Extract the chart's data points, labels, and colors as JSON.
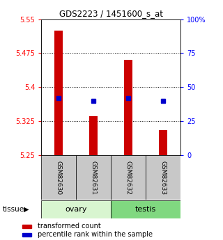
{
  "title": "GDS2223 / 1451600_s_at",
  "samples": [
    "GSM82630",
    "GSM82631",
    "GSM82632",
    "GSM82633"
  ],
  "bar_values": [
    5.525,
    5.335,
    5.46,
    5.305
  ],
  "blue_values": [
    5.375,
    5.37,
    5.375,
    5.37
  ],
  "bar_base": 5.25,
  "ylim_left": [
    5.25,
    5.55
  ],
  "ylim_right": [
    0,
    100
  ],
  "yticks_left": [
    5.25,
    5.325,
    5.4,
    5.475,
    5.55
  ],
  "yticks_right": [
    0,
    25,
    50,
    75,
    100
  ],
  "groups": [
    {
      "label": "ovary",
      "samples": [
        0,
        1
      ],
      "color": "#d8f5d0"
    },
    {
      "label": "testis",
      "samples": [
        2,
        3
      ],
      "color": "#80d880"
    }
  ],
  "bar_color": "#cc0000",
  "blue_color": "#0000cc",
  "grid_color": "#000000",
  "sample_bg_color": "#c8c8c8",
  "tissue_label": "tissue",
  "legend_red_label": "transformed count",
  "legend_blue_label": "percentile rank within the sample"
}
